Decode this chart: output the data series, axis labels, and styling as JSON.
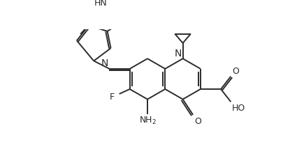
{
  "bg_color": "#ffffff",
  "bond_color": "#2b2b2b",
  "line_width": 1.4,
  "font_size": 9,
  "fig_width": 4.25,
  "fig_height": 2.28,
  "dpi": 100,
  "xlim": [
    0,
    8.5
  ],
  "ylim": [
    0,
    4.56
  ]
}
